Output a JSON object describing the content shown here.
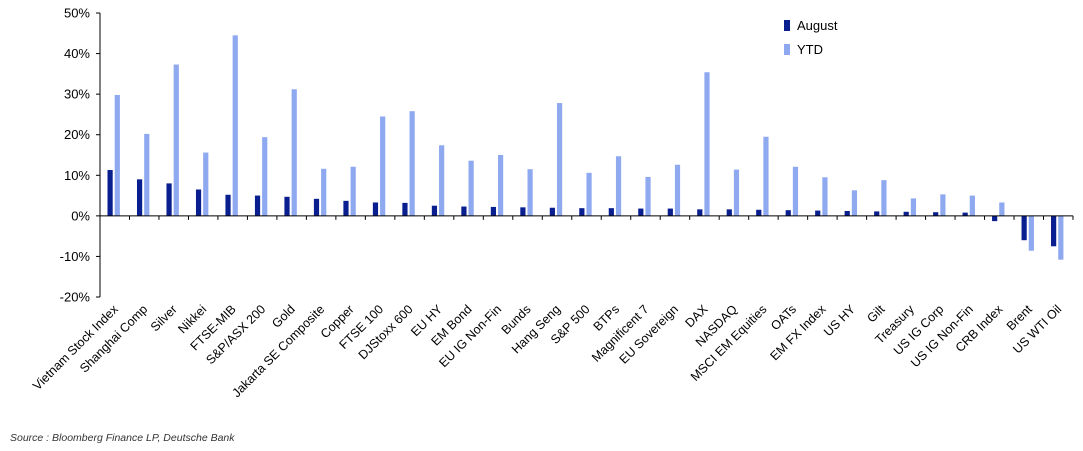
{
  "chart_data": {
    "type": "bar",
    "categories": [
      "Vietnam Stock Index",
      "Shanghai Comp",
      "Silver",
      "Nikkei",
      "FTSE-MIB",
      "S&P/ASX 200",
      "Gold",
      "Jakarta SE Composite",
      "Copper",
      "FTSE 100",
      "DJStoxx 600",
      "EU HY",
      "EM Bond",
      "EU IG Non-Fin",
      "Bunds",
      "Hang Seng",
      "S&P 500",
      "BTPs",
      "Magnificent 7",
      "EU Sovereign",
      "DAX",
      "NASDAQ",
      "MSCI EM Equities",
      "OATs",
      "EM FX Index",
      "US HY",
      "Gilt",
      "Treasury",
      "US IG Corp",
      "US IG Non-Fin",
      "CRB Index",
      "Brent",
      "US WTI Oil"
    ],
    "series": [
      {
        "name": "August",
        "color": "#0a1f8f",
        "values": [
          11.3,
          9.0,
          8.0,
          6.5,
          5.2,
          5.0,
          4.7,
          4.2,
          3.7,
          3.3,
          3.2,
          2.5,
          2.3,
          2.2,
          2.1,
          2.0,
          1.9,
          1.9,
          1.8,
          1.8,
          1.6,
          1.6,
          1.5,
          1.4,
          1.3,
          1.2,
          1.1,
          1.0,
          0.9,
          0.8,
          -1.3,
          -6.0,
          -7.5
        ]
      },
      {
        "name": "YTD",
        "color": "#8fa9f0",
        "values": [
          29.8,
          20.2,
          37.3,
          15.6,
          44.5,
          19.4,
          31.2,
          11.6,
          12.1,
          24.5,
          25.8,
          17.4,
          13.6,
          15.0,
          11.5,
          27.8,
          10.6,
          14.7,
          9.6,
          12.6,
          35.4,
          11.4,
          19.5,
          12.1,
          9.5,
          6.3,
          8.8,
          4.3,
          5.3,
          5.0,
          3.3,
          -8.6,
          -10.8
        ]
      }
    ],
    "xlabel": "",
    "ylabel": "",
    "ylim": [
      -20,
      50
    ],
    "ytick_step": 10,
    "ytick_suffix": "%",
    "grid": false,
    "legend_position": "top-right"
  },
  "source": "Source : Bloomberg Finance LP, Deutsche Bank"
}
